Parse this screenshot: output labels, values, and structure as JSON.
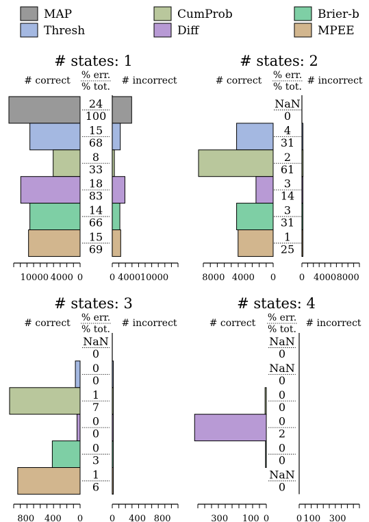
{
  "legend": {
    "entries": [
      {
        "name": "MAP",
        "color": "#999999"
      },
      {
        "name": "Thresh",
        "color": "#a4b8e1"
      },
      {
        "name": "CumProb",
        "color": "#b9c79c"
      },
      {
        "name": "Diff",
        "color": "#b89ad5"
      },
      {
        "name": "Brier-b",
        "color": "#7ecfa5"
      },
      {
        "name": "MPEE",
        "color": "#d2b68e"
      }
    ]
  },
  "chart_data": [
    {
      "type": "bar",
      "title": "# states: 1",
      "left_label": "# correct",
      "right_label": "# incorrect",
      "mid_top": "% err.",
      "mid_bottom": "% tot.",
      "categories": [
        "MAP",
        "Thresh",
        "CumProb",
        "Diff",
        "Brier-b",
        "MPEE"
      ],
      "correct": [
        15600,
        11000,
        5900,
        13000,
        11000,
        11300
      ],
      "incorrect": [
        4600,
        1900,
        500,
        3000,
        1800,
        2000
      ],
      "pct_err": [
        "24",
        "15",
        "8",
        "18",
        "14",
        "15"
      ],
      "pct_tot": [
        "100",
        "68",
        "33",
        "83",
        "66",
        "69"
      ],
      "left_ticks": [
        "10000",
        "4000",
        "0"
      ],
      "left_tick_values": [
        10000,
        4000,
        0
      ],
      "right_ticks": [
        "0",
        "4000",
        "10000"
      ],
      "right_tick_values": [
        0,
        4000,
        10000
      ],
      "xmax": 15600
    },
    {
      "type": "bar",
      "title": "# states: 2",
      "left_label": "# correct",
      "right_label": "# incorrect",
      "mid_top": "% err.",
      "mid_bottom": "% tot.",
      "categories": [
        "MAP",
        "Thresh",
        "CumProb",
        "Diff",
        "Brier-b",
        "MPEE"
      ],
      "correct": [
        0,
        4900,
        10000,
        2300,
        4900,
        4700
      ],
      "incorrect": [
        0,
        180,
        200,
        70,
        180,
        60
      ],
      "pct_err": [
        "NaN",
        "4",
        "2",
        "3",
        "3",
        "1"
      ],
      "pct_tot": [
        "0",
        "31",
        "61",
        "14",
        "31",
        "25"
      ],
      "left_ticks": [
        "8000",
        "4000",
        "0"
      ],
      "left_tick_values": [
        8000,
        4000,
        0
      ],
      "right_ticks": [
        "0",
        "4000",
        "8000"
      ],
      "right_tick_values": [
        0,
        4000,
        8000
      ],
      "xmax": 10000
    },
    {
      "type": "bar",
      "title": "# states: 3",
      "left_label": "# correct",
      "right_label": "# incorrect",
      "mid_top": "% err.",
      "mid_bottom": "% tot.",
      "categories": [
        "MAP",
        "Thresh",
        "CumProb",
        "Diff",
        "Brier-b",
        "MPEE"
      ],
      "correct": [
        0,
        70,
        1040,
        45,
        410,
        920
      ],
      "incorrect": [
        0,
        2,
        14,
        1,
        3,
        10
      ],
      "pct_err": [
        "NaN",
        "0",
        "1",
        "0",
        "0",
        "1"
      ],
      "pct_tot": [
        "0",
        "0",
        "7",
        "0",
        "3",
        "6"
      ],
      "left_ticks": [
        "800",
        "400",
        "0"
      ],
      "left_tick_values": [
        800,
        400,
        0
      ],
      "right_ticks": [
        "0",
        "400",
        "800"
      ],
      "right_tick_values": [
        0,
        400,
        800
      ],
      "xmax": 1050
    },
    {
      "type": "bar",
      "title": "# states: 4",
      "left_label": "# correct",
      "right_label": "# incorrect",
      "mid_top": "% err.",
      "mid_bottom": "% tot.",
      "categories": [
        "MAP",
        "Thresh",
        "CumProb",
        "Diff",
        "Brier-b",
        "MPEE"
      ],
      "correct": [
        0,
        0,
        8,
        460,
        5,
        0
      ],
      "incorrect": [
        0,
        0,
        0,
        0,
        0,
        0
      ],
      "pct_err": [
        "NaN",
        "NaN",
        "0",
        "0",
        "0",
        "NaN"
      ],
      "pct_tot": [
        "0",
        "0",
        "0",
        "2",
        "0",
        "0"
      ],
      "left_ticks": [
        "300",
        "100",
        "0"
      ],
      "left_tick_values": [
        300,
        100,
        0
      ],
      "right_ticks": [
        "0",
        "100",
        "300"
      ],
      "right_tick_values": [
        0,
        100,
        300
      ],
      "xmax": 470
    }
  ]
}
